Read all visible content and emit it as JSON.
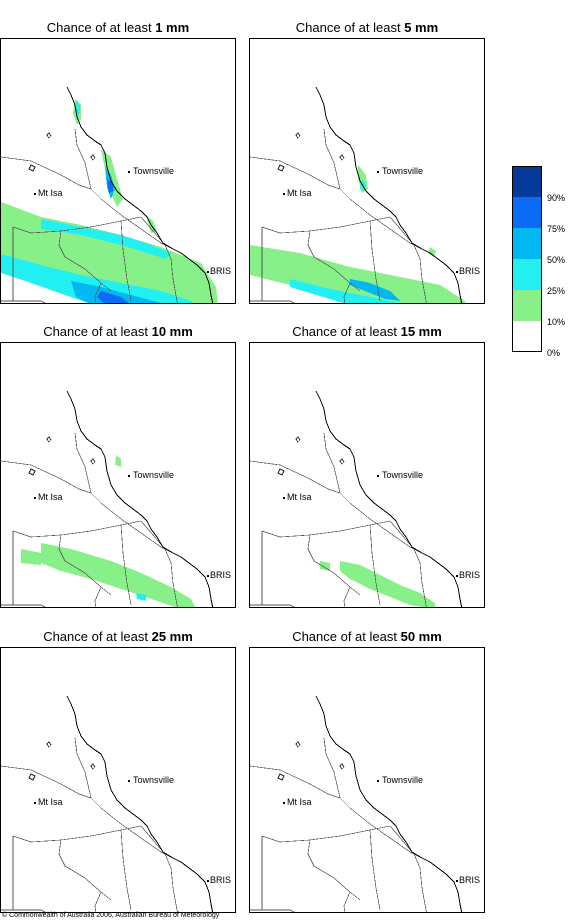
{
  "legend": {
    "levels": [
      {
        "label": "90%",
        "color": "#063a9a"
      },
      {
        "label": "75%",
        "color": "#0a6cf5"
      },
      {
        "label": "50%",
        "color": "#00b8f2"
      },
      {
        "label": "25%",
        "color": "#22f0f0"
      },
      {
        "label": "10%",
        "color": "#88f088"
      },
      {
        "label": "0%",
        "color": "#ffffff"
      }
    ]
  },
  "panels": [
    {
      "prefix": "Chance of at least",
      "amount": "1 mm",
      "zones": [
        {
          "level": 1,
          "poly": "0,163 40,178 80,186 120,196 160,208 200,224 215,248 220,295 205,295 180,290 140,278 100,262 60,246 20,230 0,220"
        },
        {
          "level": 1,
          "poly": "0,198 40,208 90,222 140,232 180,238 200,246 205,260 170,252 120,242 70,232 20,222 0,215"
        },
        {
          "level": 2,
          "poly": "0,215 40,226 80,236 120,244 160,252 190,262 205,282 200,295 180,295 150,284 110,272 70,258 30,244 0,234"
        },
        {
          "level": 2,
          "poly": "40,180 80,188 120,196 150,206 170,214 165,220 120,206 80,196 40,190"
        },
        {
          "level": 3,
          "poly": "70,242 100,248 130,256 160,264 180,272 200,285 205,295 165,295 130,282 100,270 75,258"
        },
        {
          "level": 4,
          "poly": "100,252 120,258 130,266 120,272 105,266 96,258"
        },
        {
          "level": 4,
          "poly": "155,290 180,290 195,295 205,305 160,305"
        },
        {
          "level": 1,
          "poly": "74,60 80,66 80,80 76,86 72,74"
        },
        {
          "level": 2,
          "poly": "75,62 79,66 79,74 76,78"
        },
        {
          "level": 1,
          "poly": "100,110 110,118 116,140 122,160 116,168 108,150 104,130"
        },
        {
          "level": 3,
          "poly": "104,128 110,136 114,150 110,160 106,148"
        },
        {
          "level": 4,
          "poly": "106,140 112,144 112,152 108,154"
        },
        {
          "level": 1,
          "poly": "145,176 152,182 156,192 150,194"
        }
      ]
    },
    {
      "prefix": "Chance of at least",
      "amount": "5 mm",
      "zones": [
        {
          "level": 1,
          "poly": "0,206 50,214 100,228 150,238 190,246 215,262 220,295 195,295 160,282 120,270 80,258 40,246 0,236"
        },
        {
          "level": 2,
          "poly": "40,240 80,250 120,258 150,264 175,270 190,285 195,295 170,288 140,278 100,266 60,254 40,248"
        },
        {
          "level": 3,
          "poly": "100,240 120,244 140,252 150,262 135,260 115,252 100,246"
        },
        {
          "level": 1,
          "poly": "180,208 186,212 184,218 178,214"
        },
        {
          "level": 1,
          "poly": "108,126 116,136 118,150 112,154 108,140"
        },
        {
          "level": 2,
          "poly": "112,140 116,146 114,152 110,150"
        }
      ]
    },
    {
      "prefix": "Chance of at least",
      "amount": "10 mm",
      "zones": [
        {
          "level": 1,
          "poly": "40,200 70,206 110,218 140,230 170,244 190,256 195,266 180,266 150,256 120,246 90,236 60,228 40,220"
        },
        {
          "level": 1,
          "poly": "20,206 40,210 40,222 20,220"
        },
        {
          "level": 2,
          "poly": "135,250 145,252 145,258 136,256"
        },
        {
          "level": 1,
          "poly": "115,112 120,116 120,124 114,122"
        }
      ]
    },
    {
      "prefix": "Chance of at least",
      "amount": "15 mm",
      "zones": [
        {
          "level": 1,
          "poly": "90,218 110,222 130,232 150,242 170,250 185,260 185,266 160,262 140,254 120,246 100,236 90,228"
        },
        {
          "level": 1,
          "poly": "70,218 80,220 80,228 70,226"
        }
      ]
    },
    {
      "prefix": "Chance of at least",
      "amount": "25 mm",
      "zones": []
    },
    {
      "prefix": "Chance of at least",
      "amount": "50 mm",
      "zones": []
    }
  ],
  "towns": [
    {
      "name": "Townsville"
    },
    {
      "name": "Mt Isa"
    },
    {
      "name": "BRIS"
    }
  ],
  "copyright": {
    "icon": "copyright-icon",
    "text": "Commonwealth of Australia 2006, Australian Bureau of Meteorology"
  }
}
